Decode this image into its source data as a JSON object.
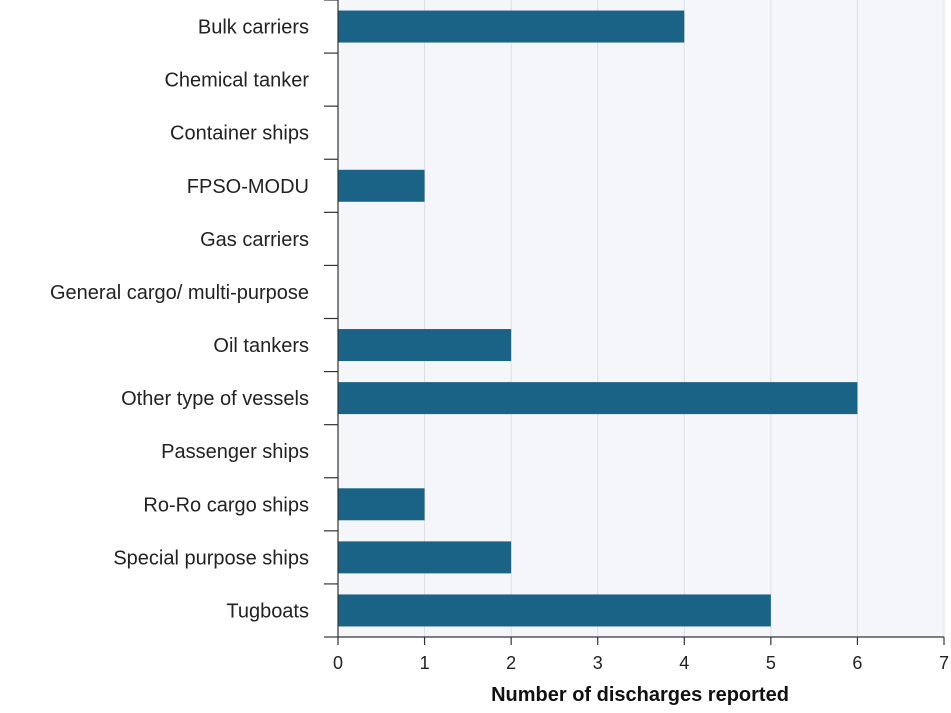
{
  "chart_data": {
    "type": "bar",
    "orientation": "horizontal",
    "categories": [
      "Bulk carriers",
      "Chemical tanker",
      "Container ships",
      "FPSO-MODU",
      "Gas carriers",
      "General cargo/ multi-purpose",
      "Oil tankers",
      "Other type of vessels",
      "Passenger ships",
      "Ro-Ro cargo ships",
      "Special purpose ships",
      "Tugboats"
    ],
    "values": [
      4,
      0,
      0,
      1,
      0,
      0,
      2,
      6,
      0,
      1,
      2,
      5
    ],
    "xlabel": "Number of discharges reported",
    "ylabel": "",
    "xlim": [
      0,
      7
    ],
    "xticks": [
      "0",
      "1",
      "2",
      "3",
      "4",
      "5",
      "6",
      "7"
    ],
    "grid": "vertical",
    "legend": "none",
    "colors": {
      "bar": "#1a6386",
      "plot_background": "#f5f6fa",
      "grid": "#dcdfe6",
      "axis": "#333333"
    }
  }
}
